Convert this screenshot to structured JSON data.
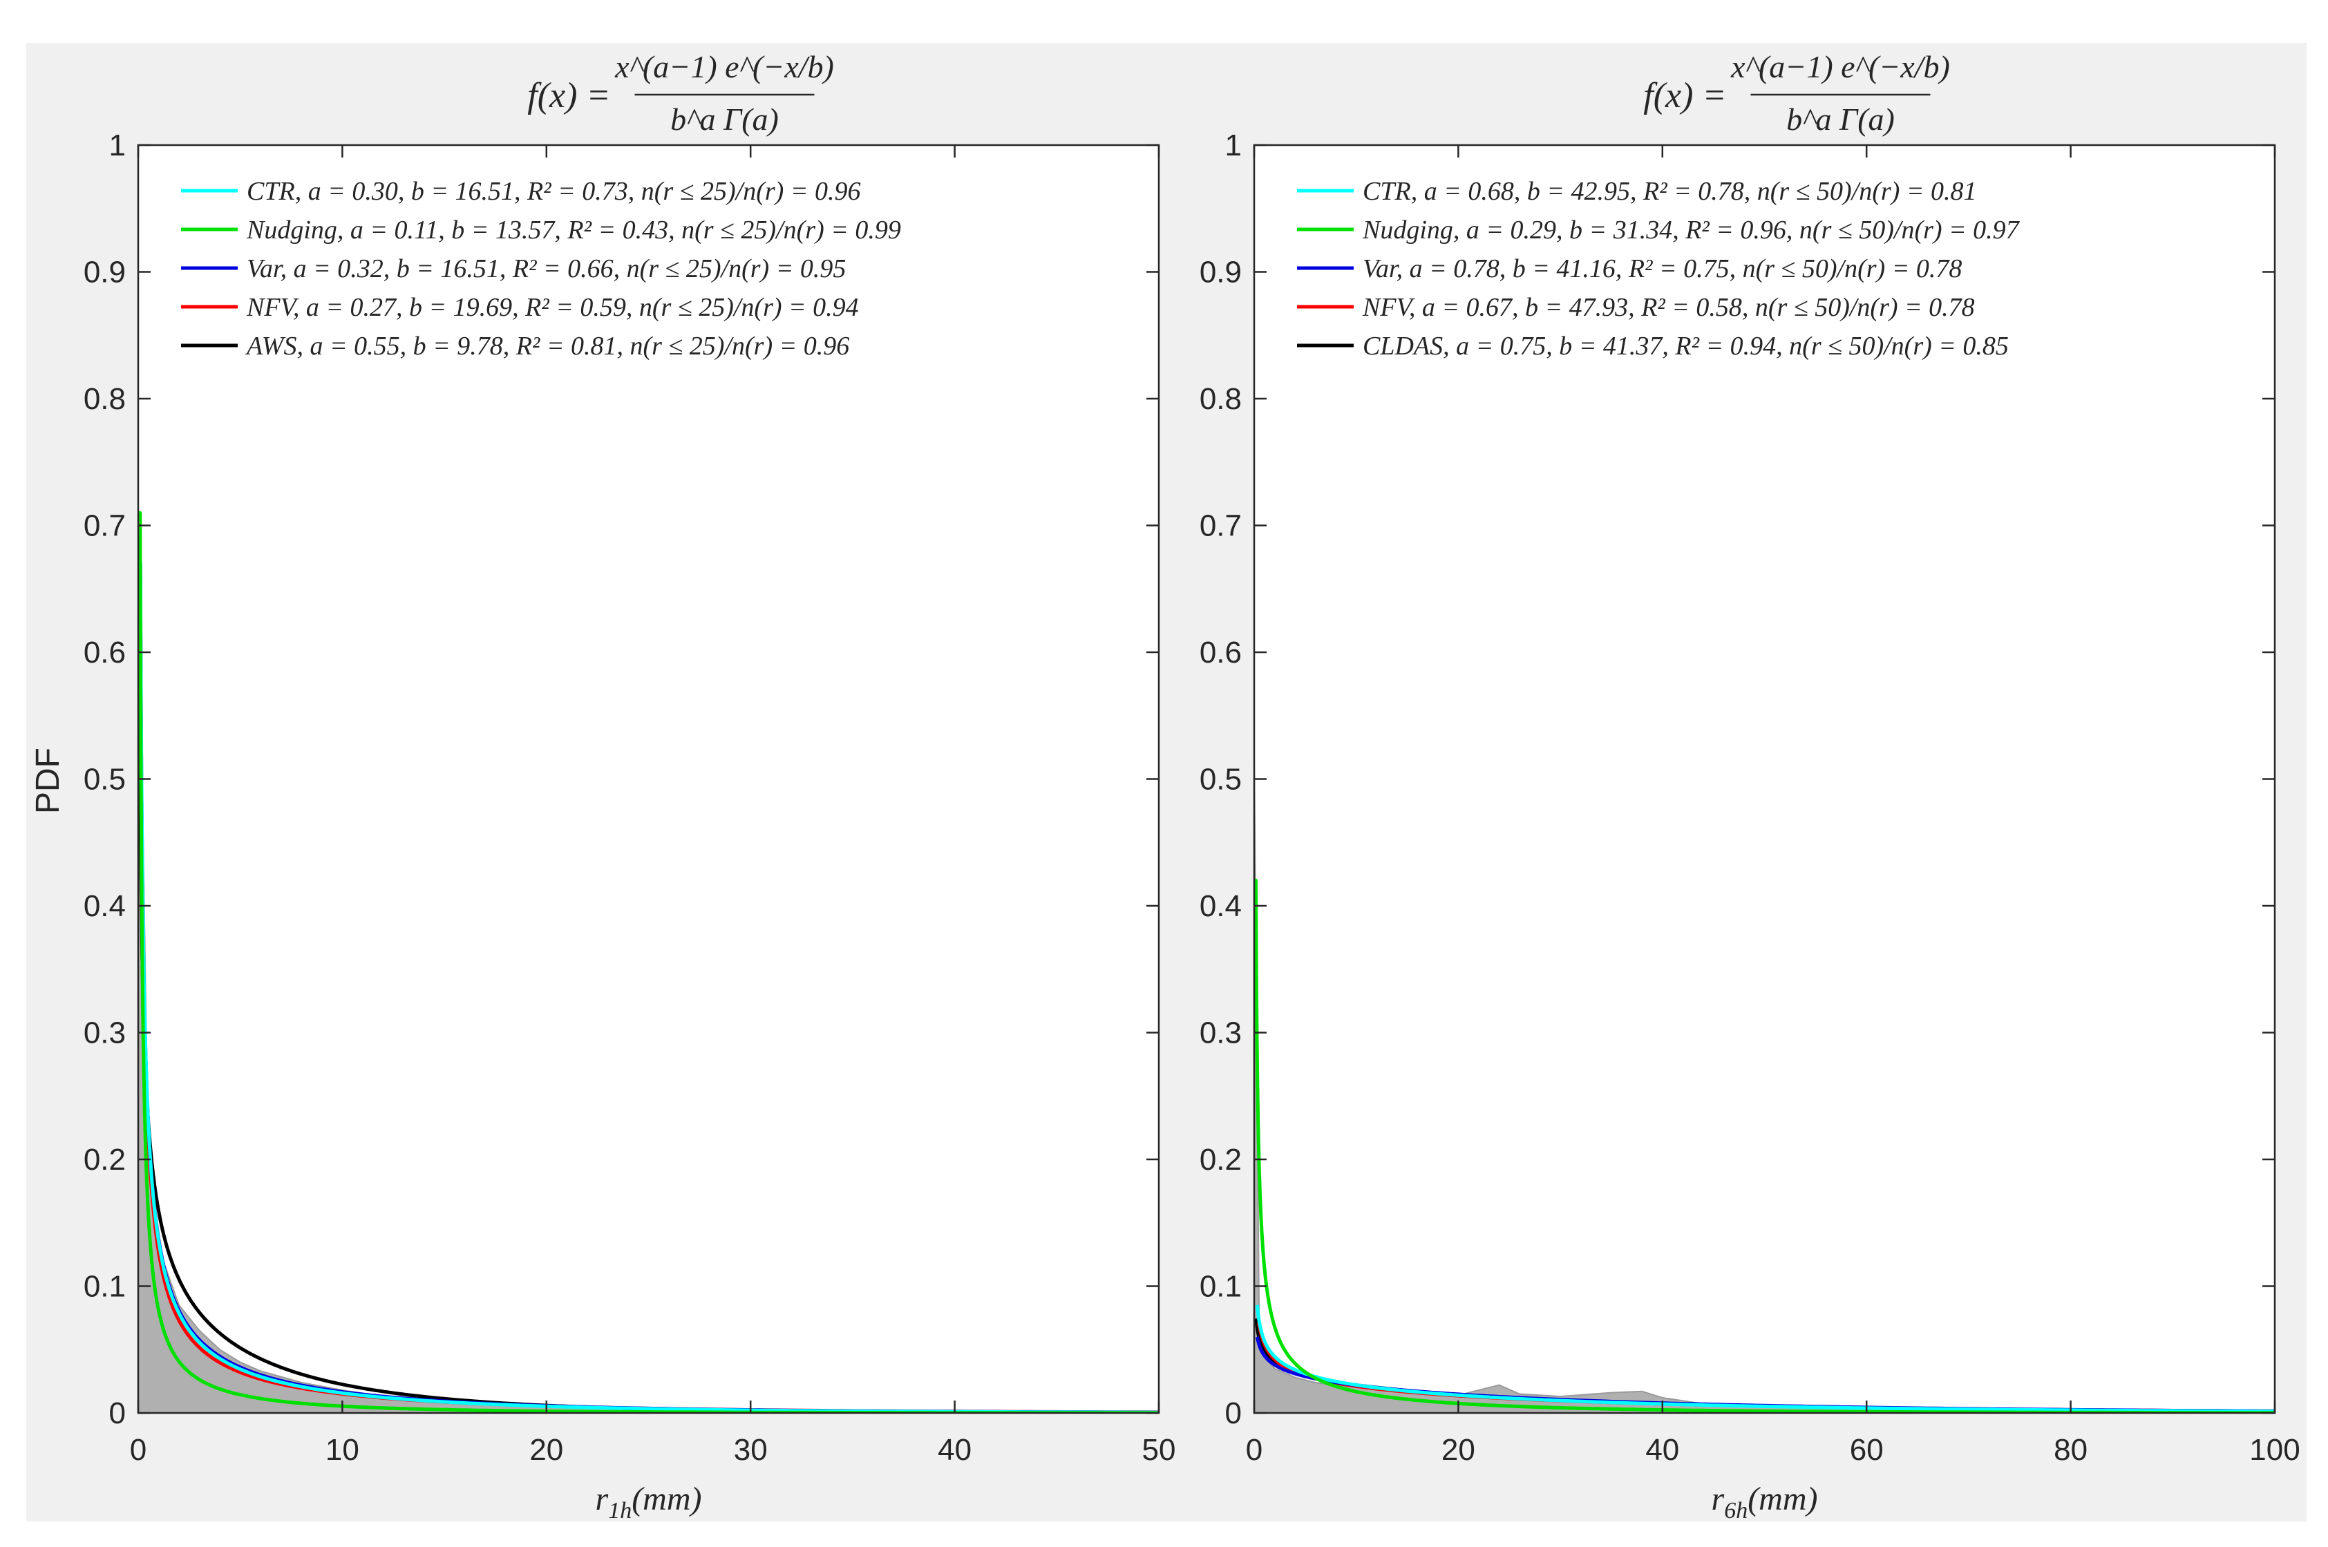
{
  "figure": {
    "background": "#f0f0f0",
    "ylabel": "PDF"
  },
  "colors": {
    "CTR": "#00ffff",
    "Nudging": "#00e000",
    "Var": "#0000e0",
    "NFV": "#ff0000",
    "obs": "#000000",
    "obs_hist": "#b0b0b0"
  },
  "chart_data": [
    {
      "type": "line",
      "panel": "left",
      "title": "f(x) = x^{a−1} e^{−x/b} / (b^a Γ(a))",
      "title_parts": {
        "lhs": "f(x) =",
        "numerator": "x^(a−1) e^(−x/b)",
        "denominator": "b^a Γ(a)"
      },
      "xlabel": "r_{1h}(mm)",
      "xlabel_parts": {
        "base": "r",
        "sub": "1h",
        "rest": "(mm)"
      },
      "ylabel": "PDF",
      "xlim": [
        0,
        50
      ],
      "ylim": [
        0,
        1
      ],
      "xticks": [
        "0",
        "10",
        "20",
        "30",
        "40",
        "50"
      ],
      "yticks": [
        "0",
        "0.1",
        "0.2",
        "0.3",
        "0.4",
        "0.5",
        "0.6",
        "0.7",
        "0.8",
        "0.9",
        "1"
      ],
      "grid": false,
      "legend_position": "top-left",
      "histogram": {
        "name": "AWS histogram",
        "x": [
          0,
          0.5,
          1,
          2,
          3,
          4,
          5,
          6,
          8,
          10,
          12,
          15,
          20,
          25,
          30,
          40,
          50
        ],
        "y": [
          0.7,
          0.19,
          0.13,
          0.085,
          0.065,
          0.05,
          0.04,
          0.033,
          0.024,
          0.018,
          0.013,
          0.009,
          0.005,
          0.003,
          0.002,
          0.001,
          0.0005
        ]
      },
      "series": [
        {
          "name": "CTR",
          "a": 0.3,
          "b": 16.51,
          "r2": 0.73,
          "ratio": 0.96,
          "legend": "CTR, a = 0.30, b = 16.51, R² = 0.73, n(r ≤ 25)/n(r) = 0.96",
          "x_start": 0.05,
          "y_start_cap": 0.67
        },
        {
          "name": "Nudging",
          "a": 0.11,
          "b": 13.57,
          "r2": 0.43,
          "ratio": 0.99,
          "legend": "Nudging, a = 0.11, b = 13.57, R² = 0.43, n(r ≤ 25)/n(r) = 0.99",
          "x_start": 0.04,
          "y_start_cap": 0.71
        },
        {
          "name": "Var",
          "a": 0.32,
          "b": 16.51,
          "r2": 0.66,
          "ratio": 0.95,
          "legend": "Var, a = 0.32, b = 16.51, R² = 0.66, n(r ≤ 25)/n(r) = 0.95",
          "x_start": 0.05,
          "y_start_cap": 0.67
        },
        {
          "name": "NFV",
          "a": 0.27,
          "b": 19.69,
          "r2": 0.59,
          "ratio": 0.94,
          "legend": "NFV, a = 0.27, b = 19.69, R² = 0.59, n(r ≤ 25)/n(r) = 0.94",
          "x_start": 0.05,
          "y_start_cap": 0.67
        },
        {
          "name": "AWS",
          "a": 0.55,
          "b": 9.78,
          "r2": 0.81,
          "ratio": 0.96,
          "legend": "AWS, a = 0.55, b = 9.78, R² = 0.81, n(r ≤ 25)/n(r) = 0.96",
          "x_start": 0.05,
          "y_start_cap": 0.67
        }
      ]
    },
    {
      "type": "line",
      "panel": "right",
      "title": "f(x) = x^{a−1} e^{−x/b} / (b^a Γ(a))",
      "title_parts": {
        "lhs": "f(x) =",
        "numerator": "x^(a−1) e^(−x/b)",
        "denominator": "b^a Γ(a)"
      },
      "xlabel": "r_{6h}(mm)",
      "xlabel_parts": {
        "base": "r",
        "sub": "6h",
        "rest": "(mm)"
      },
      "ylabel": "",
      "xlim": [
        0,
        100
      ],
      "ylim": [
        0,
        1
      ],
      "xticks": [
        "0",
        "20",
        "40",
        "60",
        "80",
        "100"
      ],
      "yticks": [
        "0",
        "0.1",
        "0.2",
        "0.3",
        "0.4",
        "0.5",
        "0.6",
        "0.7",
        "0.8",
        "0.9",
        "1"
      ],
      "grid": false,
      "legend_position": "top-left",
      "histogram": {
        "name": "CLDAS histogram",
        "x": [
          0,
          0.5,
          1,
          2,
          4,
          6,
          10,
          15,
          20,
          22,
          24,
          26,
          30,
          35,
          38,
          40,
          45,
          60,
          80,
          100
        ],
        "y": [
          0.52,
          0.06,
          0.045,
          0.035,
          0.028,
          0.024,
          0.02,
          0.016,
          0.014,
          0.018,
          0.022,
          0.015,
          0.013,
          0.016,
          0.017,
          0.012,
          0.006,
          0.003,
          0.001,
          0.0005
        ]
      },
      "series": [
        {
          "name": "CTR",
          "a": 0.68,
          "b": 42.95,
          "r2": 0.78,
          "ratio": 0.81,
          "legend": "CTR, a = 0.68, b = 42.95, R² = 0.78, n(r ≤ 50)/n(r) = 0.81",
          "x_start": 0.3,
          "y_start_cap": 0.09
        },
        {
          "name": "Nudging",
          "a": 0.29,
          "b": 31.34,
          "r2": 0.96,
          "ratio": 0.97,
          "legend": "Nudging, a = 0.29, b = 31.34, R² = 0.96, n(r ≤ 50)/n(r) = 0.97",
          "x_start": 0.1,
          "y_start_cap": 0.42
        },
        {
          "name": "Var",
          "a": 0.78,
          "b": 41.16,
          "r2": 0.75,
          "ratio": 0.78,
          "legend": "Var, a = 0.78, b = 41.16, R² = 0.75, n(r ≤ 50)/n(r) = 0.78",
          "x_start": 0.3,
          "y_start_cap": 0.07
        },
        {
          "name": "NFV",
          "a": 0.67,
          "b": 47.93,
          "r2": 0.58,
          "ratio": 0.78,
          "legend": "NFV, a = 0.67, b = 47.93, R² = 0.58, n(r ≤ 50)/n(r) = 0.78",
          "x_start": 0.3,
          "y_start_cap": 0.07
        },
        {
          "name": "CLDAS",
          "a": 0.75,
          "b": 41.37,
          "r2": 0.94,
          "ratio": 0.85,
          "legend": "CLDAS, a = 0.75, b = 41.37, R² = 0.94, n(r ≤ 50)/n(r) = 0.85",
          "x_start": 0.2,
          "y_start_cap": 0.545
        }
      ]
    }
  ]
}
